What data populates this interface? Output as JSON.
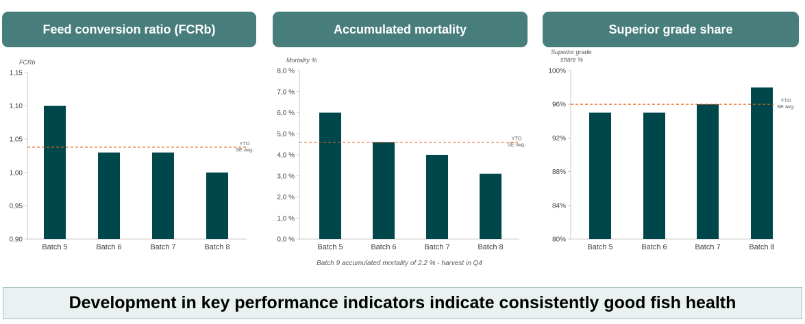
{
  "panels": [
    {
      "header": "Feed conversion ratio (FCRb)"
    },
    {
      "header": "Accumulated mortality"
    },
    {
      "header": "Superior grade share"
    }
  ],
  "footnote": "Batch 9 accumulated mortality of 2.2 % - harvest in Q4",
  "bottom_banner": "Development in key performance indicators indicate consistently good fish health",
  "colors": {
    "bar": "#00474c",
    "header": "#477e7b",
    "reference": "#e0651c"
  },
  "chart_data": [
    {
      "type": "bar",
      "title": "Feed conversion ratio (FCRb)",
      "ylabel": "FCRb",
      "categories": [
        "Batch 5",
        "Batch 6",
        "Batch 7",
        "Batch 8"
      ],
      "values": [
        1.1,
        1.03,
        1.03,
        1.0
      ],
      "ylim": [
        0.9,
        1.15
      ],
      "yticks": [
        "0,90",
        "0,95",
        "1,00",
        "1,05",
        "1,10",
        "1,15"
      ],
      "reference_line": {
        "value": 1.038,
        "label_line1": "YTD",
        "label_line2": "SE avg."
      }
    },
    {
      "type": "bar",
      "title": "Accumulated mortality",
      "ylabel": "Mortality %",
      "categories": [
        "Batch 5",
        "Batch 6",
        "Batch 7",
        "Batch 8"
      ],
      "values": [
        6.0,
        4.6,
        4.0,
        3.1
      ],
      "ylim": [
        0,
        8
      ],
      "yticks": [
        "0,0 %",
        "1,0 %",
        "2,0 %",
        "3,0 %",
        "4,0 %",
        "5,0 %",
        "6,0 %",
        "7,0 %",
        "8,0 %"
      ],
      "reference_line": {
        "value": 4.6,
        "label_line1": "YTD",
        "label_line2": "SE avg."
      }
    },
    {
      "type": "bar",
      "title": "Superior grade share",
      "ylabel_line1": "Superior grade",
      "ylabel_line2": "share %",
      "categories": [
        "Batch 5",
        "Batch 6",
        "Batch 7",
        "Batch 8"
      ],
      "values": [
        95,
        95,
        96,
        98
      ],
      "ylim": [
        80,
        100
      ],
      "yticks": [
        "80%",
        "84%",
        "88%",
        "92%",
        "96%",
        "100%"
      ],
      "reference_line": {
        "value": 96,
        "label_line1": "YTD",
        "label_line2": "SE avg."
      }
    }
  ]
}
